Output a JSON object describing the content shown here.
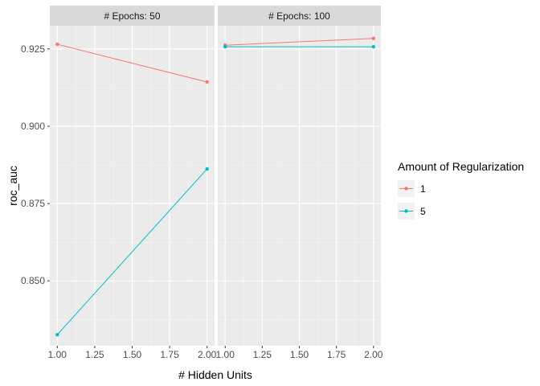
{
  "chart_data": {
    "type": "line",
    "facet_label": "# Epochs",
    "facets": [
      {
        "label": "# Epochs: 50",
        "series": [
          {
            "name": "1",
            "x": [
              1,
              2
            ],
            "y": [
              0.9265,
              0.9143
            ]
          },
          {
            "name": "5",
            "x": [
              1,
              2
            ],
            "y": [
              0.8326,
              0.8862
            ]
          }
        ]
      },
      {
        "label": "# Epochs: 100",
        "series": [
          {
            "name": "1",
            "x": [
              1,
              2
            ],
            "y": [
              0.9262,
              0.9284
            ]
          },
          {
            "name": "5",
            "x": [
              1,
              2
            ],
            "y": [
              0.9257,
              0.9257
            ]
          }
        ]
      }
    ],
    "xlabel": "# Hidden Units",
    "ylabel": "roc_auc",
    "xlim": [
      0.95,
      2.05
    ],
    "ylim": [
      0.829,
      0.9325
    ],
    "xticks": [
      1.0,
      1.25,
      1.5,
      1.75,
      2.0
    ],
    "xtick_labels": [
      "1.00",
      "1.25",
      "1.50",
      "1.75",
      "2.00"
    ],
    "yticks": [
      0.85,
      0.875,
      0.9,
      0.925
    ],
    "ytick_labels": [
      "0.850",
      "0.875",
      "0.900",
      "0.925"
    ],
    "legend": {
      "title": "Amount of Regularization",
      "position": "right",
      "entries": [
        {
          "label": "1",
          "color": "#F8766D"
        },
        {
          "label": "5",
          "color": "#00BFC4"
        }
      ]
    },
    "grid": true,
    "colors": {
      "panel_bg": "#EBEBEB",
      "strip_bg": "#D9D9D9",
      "grid_major": "#FFFFFF",
      "grid_minor": "#F5F5F5"
    }
  }
}
